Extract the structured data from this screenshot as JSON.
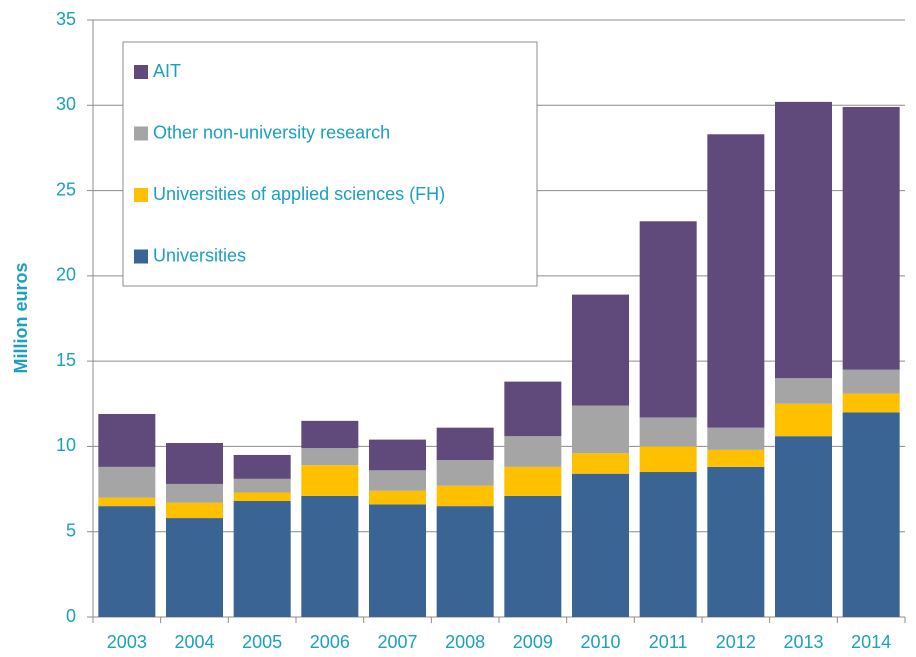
{
  "chart_data": {
    "type": "stacked_bar",
    "y_label": "Million euros",
    "categories": [
      "2003",
      "2004",
      "2005",
      "2006",
      "2007",
      "2008",
      "2009",
      "2010",
      "2011",
      "2012",
      "2013",
      "2014"
    ],
    "series": [
      {
        "name": "Universities",
        "color": "#3a6494",
        "values": [
          6.5,
          5.8,
          6.8,
          7.1,
          6.6,
          6.5,
          7.1,
          8.4,
          8.5,
          8.8,
          10.6,
          12.0
        ]
      },
      {
        "name": "Universities of applied sciences (FH)",
        "color": "#ffc000",
        "values": [
          0.5,
          0.9,
          0.5,
          1.8,
          0.8,
          1.2,
          1.7,
          1.2,
          1.5,
          1.0,
          1.9,
          1.1
        ]
      },
      {
        "name": "Other non-university research",
        "color": "#a5a5a5",
        "values": [
          1.8,
          1.1,
          0.8,
          1.0,
          1.2,
          1.5,
          1.8,
          2.8,
          1.7,
          1.3,
          1.5,
          1.4
        ]
      },
      {
        "name": "AIT",
        "color": "#5f4a7b",
        "values": [
          3.1,
          2.4,
          1.4,
          1.6,
          1.8,
          1.9,
          3.2,
          6.5,
          11.5,
          17.2,
          16.2,
          15.4
        ]
      }
    ],
    "ylim": [
      0,
      35
    ],
    "yticks": [
      0,
      5,
      10,
      15,
      20,
      25,
      30,
      35
    ],
    "grid": true,
    "legend": "upper left"
  }
}
